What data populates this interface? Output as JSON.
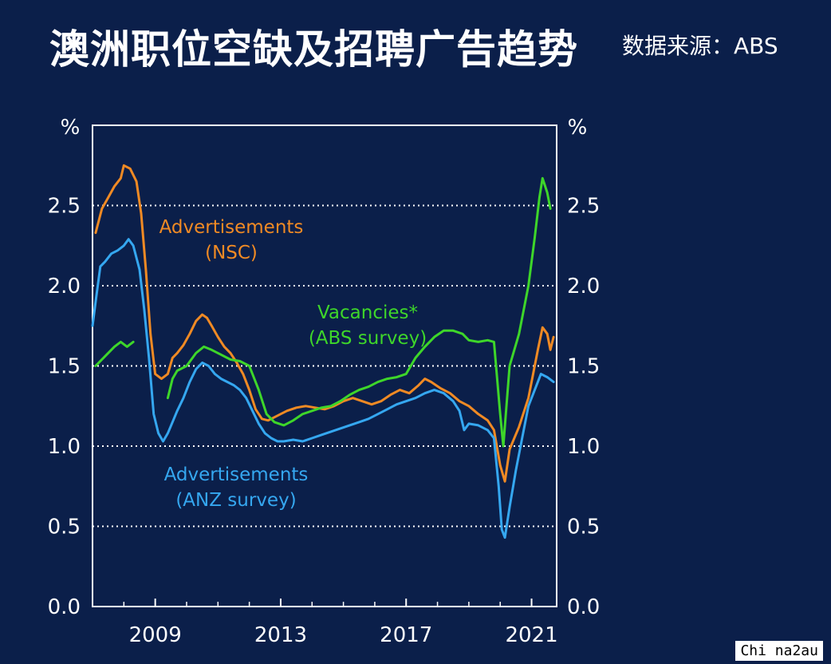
{
  "header": {
    "title": "澳洲职位空缺及招聘广告趋势",
    "source": "数据来源：ABS"
  },
  "watermark": "Chi na2au",
  "colors": {
    "background": "#0b1f4a",
    "nsc": "#f08a24",
    "anz": "#35a7f0",
    "abs": "#3ed62a",
    "grid": "#ffffff"
  },
  "chart_data": {
    "type": "line",
    "y_unit_left": "%",
    "y_unit_right": "%",
    "xlim": [
      2007.0,
      2021.8
    ],
    "ylim": [
      0,
      3.0
    ],
    "y_ticks": [
      0,
      0.5,
      1.0,
      1.5,
      2.0,
      2.5
    ],
    "y_tick_labels": [
      "0.0",
      "0.5",
      "1.0",
      "1.5",
      "2.0",
      "2.5"
    ],
    "x_ticks": [
      2009,
      2013,
      2017,
      2021
    ],
    "x_tick_labels": [
      "2009",
      "2013",
      "2017",
      "2021"
    ],
    "grid": "dotted horizontal at 0.5, 1.0, 1.5, 2.0, 2.5",
    "series": [
      {
        "key": "nsc",
        "label_line1": "Advertisements",
        "label_line2": "(NSC)",
        "color": "#f08a24",
        "segments": [
          [
            [
              2007.1,
              2.33
            ],
            [
              2007.3,
              2.48
            ],
            [
              2007.5,
              2.55
            ],
            [
              2007.7,
              2.62
            ],
            [
              2007.9,
              2.67
            ],
            [
              2008.0,
              2.75
            ],
            [
              2008.2,
              2.73
            ],
            [
              2008.4,
              2.65
            ],
            [
              2008.55,
              2.45
            ],
            [
              2008.7,
              2.1
            ],
            [
              2008.85,
              1.7
            ],
            [
              2009.0,
              1.45
            ],
            [
              2009.2,
              1.42
            ],
            [
              2009.4,
              1.45
            ],
            [
              2009.55,
              1.55
            ],
            [
              2009.7,
              1.58
            ],
            [
              2009.9,
              1.63
            ],
            [
              2010.1,
              1.7
            ],
            [
              2010.3,
              1.78
            ],
            [
              2010.5,
              1.82
            ],
            [
              2010.65,
              1.8
            ],
            [
              2010.8,
              1.75
            ],
            [
              2011.0,
              1.68
            ],
            [
              2011.2,
              1.62
            ],
            [
              2011.4,
              1.58
            ],
            [
              2011.6,
              1.52
            ],
            [
              2011.8,
              1.45
            ],
            [
              2012.0,
              1.35
            ],
            [
              2012.2,
              1.23
            ],
            [
              2012.4,
              1.17
            ],
            [
              2012.6,
              1.16
            ],
            [
              2012.8,
              1.18
            ],
            [
              2013.0,
              1.2
            ],
            [
              2013.2,
              1.22
            ],
            [
              2013.5,
              1.24
            ],
            [
              2013.8,
              1.25
            ],
            [
              2014.1,
              1.24
            ],
            [
              2014.4,
              1.23
            ],
            [
              2014.7,
              1.25
            ],
            [
              2015.0,
              1.28
            ],
            [
              2015.3,
              1.3
            ],
            [
              2015.6,
              1.28
            ],
            [
              2015.9,
              1.26
            ],
            [
              2016.2,
              1.28
            ],
            [
              2016.5,
              1.32
            ],
            [
              2016.8,
              1.35
            ],
            [
              2017.1,
              1.33
            ],
            [
              2017.4,
              1.38
            ],
            [
              2017.6,
              1.42
            ],
            [
              2017.8,
              1.4
            ],
            [
              2018.1,
              1.36
            ],
            [
              2018.4,
              1.33
            ],
            [
              2018.7,
              1.28
            ],
            [
              2019.0,
              1.25
            ],
            [
              2019.3,
              1.2
            ],
            [
              2019.6,
              1.16
            ],
            [
              2019.8,
              1.1
            ],
            [
              2020.0,
              0.88
            ],
            [
              2020.15,
              0.78
            ],
            [
              2020.3,
              0.98
            ],
            [
              2020.6,
              1.12
            ],
            [
              2020.9,
              1.3
            ],
            [
              2021.2,
              1.6
            ],
            [
              2021.35,
              1.74
            ],
            [
              2021.5,
              1.7
            ],
            [
              2021.6,
              1.6
            ],
            [
              2021.7,
              1.68
            ]
          ]
        ]
      },
      {
        "key": "anz",
        "label_line1": "Advertisements",
        "label_line2": "(ANZ survey)",
        "color": "#35a7f0",
        "segments": [
          [
            [
              2007.0,
              1.75
            ],
            [
              2007.1,
              1.9
            ],
            [
              2007.25,
              2.12
            ],
            [
              2007.4,
              2.15
            ],
            [
              2007.6,
              2.2
            ],
            [
              2007.8,
              2.22
            ],
            [
              2008.0,
              2.25
            ],
            [
              2008.15,
              2.29
            ],
            [
              2008.3,
              2.25
            ],
            [
              2008.5,
              2.1
            ],
            [
              2008.65,
              1.85
            ],
            [
              2008.8,
              1.55
            ],
            [
              2008.95,
              1.2
            ],
            [
              2009.1,
              1.08
            ],
            [
              2009.25,
              1.03
            ],
            [
              2009.4,
              1.08
            ],
            [
              2009.55,
              1.15
            ],
            [
              2009.7,
              1.22
            ],
            [
              2009.9,
              1.3
            ],
            [
              2010.1,
              1.4
            ],
            [
              2010.3,
              1.48
            ],
            [
              2010.5,
              1.52
            ],
            [
              2010.7,
              1.5
            ],
            [
              2010.9,
              1.45
            ],
            [
              2011.1,
              1.42
            ],
            [
              2011.3,
              1.4
            ],
            [
              2011.5,
              1.38
            ],
            [
              2011.7,
              1.35
            ],
            [
              2011.9,
              1.3
            ],
            [
              2012.1,
              1.22
            ],
            [
              2012.3,
              1.14
            ],
            [
              2012.5,
              1.08
            ],
            [
              2012.7,
              1.05
            ],
            [
              2012.9,
              1.03
            ],
            [
              2013.1,
              1.03
            ],
            [
              2013.4,
              1.04
            ],
            [
              2013.7,
              1.03
            ],
            [
              2014.0,
              1.05
            ],
            [
              2014.3,
              1.07
            ],
            [
              2014.6,
              1.09
            ],
            [
              2014.9,
              1.11
            ],
            [
              2015.2,
              1.13
            ],
            [
              2015.5,
              1.15
            ],
            [
              2015.8,
              1.17
            ],
            [
              2016.1,
              1.2
            ],
            [
              2016.4,
              1.23
            ],
            [
              2016.7,
              1.26
            ],
            [
              2017.0,
              1.28
            ],
            [
              2017.3,
              1.3
            ],
            [
              2017.6,
              1.33
            ],
            [
              2017.9,
              1.35
            ],
            [
              2018.2,
              1.33
            ],
            [
              2018.5,
              1.28
            ],
            [
              2018.7,
              1.22
            ],
            [
              2018.85,
              1.1
            ],
            [
              2019.0,
              1.14
            ],
            [
              2019.3,
              1.13
            ],
            [
              2019.6,
              1.1
            ],
            [
              2019.8,
              1.05
            ],
            [
              2019.95,
              0.75
            ],
            [
              2020.05,
              0.48
            ],
            [
              2020.15,
              0.43
            ],
            [
              2020.3,
              0.62
            ],
            [
              2020.5,
              0.85
            ],
            [
              2020.7,
              1.05
            ],
            [
              2020.9,
              1.25
            ],
            [
              2021.1,
              1.35
            ],
            [
              2021.3,
              1.45
            ],
            [
              2021.5,
              1.43
            ],
            [
              2021.7,
              1.4
            ]
          ]
        ]
      },
      {
        "key": "abs",
        "label_line1": "Vacancies*",
        "label_line2": "(ABS survey)",
        "color": "#3ed62a",
        "segments": [
          [
            [
              2007.1,
              1.5
            ],
            [
              2007.4,
              1.56
            ],
            [
              2007.7,
              1.62
            ],
            [
              2007.9,
              1.65
            ],
            [
              2008.1,
              1.62
            ],
            [
              2008.3,
              1.65
            ]
          ],
          [
            [
              2009.4,
              1.3
            ],
            [
              2009.55,
              1.42
            ],
            [
              2009.7,
              1.47
            ],
            [
              2010.0,
              1.5
            ],
            [
              2010.3,
              1.58
            ],
            [
              2010.55,
              1.62
            ],
            [
              2010.8,
              1.6
            ],
            [
              2011.1,
              1.57
            ],
            [
              2011.4,
              1.54
            ],
            [
              2011.7,
              1.53
            ],
            [
              2012.0,
              1.5
            ],
            [
              2012.3,
              1.35
            ],
            [
              2012.55,
              1.2
            ],
            [
              2012.8,
              1.15
            ],
            [
              2013.1,
              1.13
            ],
            [
              2013.4,
              1.16
            ],
            [
              2013.7,
              1.2
            ],
            [
              2014.0,
              1.22
            ],
            [
              2014.3,
              1.24
            ],
            [
              2014.6,
              1.25
            ],
            [
              2014.9,
              1.28
            ],
            [
              2015.2,
              1.32
            ],
            [
              2015.5,
              1.35
            ],
            [
              2015.8,
              1.37
            ],
            [
              2016.1,
              1.4
            ],
            [
              2016.4,
              1.42
            ],
            [
              2016.7,
              1.43
            ],
            [
              2017.0,
              1.45
            ],
            [
              2017.3,
              1.55
            ],
            [
              2017.6,
              1.62
            ],
            [
              2017.9,
              1.68
            ],
            [
              2018.2,
              1.72
            ],
            [
              2018.5,
              1.72
            ],
            [
              2018.8,
              1.7
            ],
            [
              2019.0,
              1.66
            ],
            [
              2019.3,
              1.65
            ],
            [
              2019.6,
              1.66
            ],
            [
              2019.8,
              1.65
            ],
            [
              2020.0,
              1.2
            ],
            [
              2020.1,
              1.0
            ],
            [
              2020.3,
              1.5
            ],
            [
              2020.6,
              1.7
            ],
            [
              2020.9,
              2.0
            ],
            [
              2021.1,
              2.3
            ],
            [
              2021.25,
              2.55
            ],
            [
              2021.35,
              2.67
            ],
            [
              2021.5,
              2.58
            ],
            [
              2021.6,
              2.48
            ]
          ]
        ]
      }
    ]
  }
}
